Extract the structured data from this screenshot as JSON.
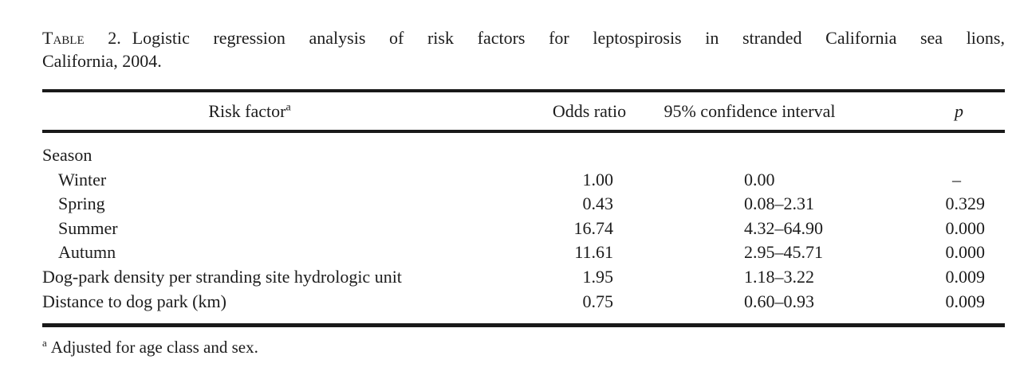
{
  "caption": {
    "label": "Table 2.",
    "line1": "Logistic regression analysis of risk factors for leptospirosis in stranded California sea lions,",
    "line2": "California, 2004."
  },
  "table": {
    "columns": [
      {
        "label": "Risk factor",
        "superscript": "a"
      },
      {
        "label": "Odds ratio"
      },
      {
        "label": "95% confidence interval"
      },
      {
        "label": "p"
      }
    ],
    "rows": [
      {
        "factor": "Season",
        "indent": false,
        "odds_ratio": "",
        "ci": "",
        "p": ""
      },
      {
        "factor": "Winter",
        "indent": true,
        "odds_ratio": "1.00",
        "ci": "0.00",
        "p": "–"
      },
      {
        "factor": "Spring",
        "indent": true,
        "odds_ratio": "0.43",
        "ci": "0.08–2.31",
        "p": "0.329"
      },
      {
        "factor": "Summer",
        "indent": true,
        "odds_ratio": "16.74",
        "ci": "4.32–64.90",
        "p": "0.000"
      },
      {
        "factor": "Autumn",
        "indent": true,
        "odds_ratio": "11.61",
        "ci": "2.95–45.71",
        "p": "0.000"
      },
      {
        "factor": "Dog-park density per stranding site hydrologic unit",
        "indent": false,
        "odds_ratio": "1.95",
        "ci": "1.18–3.22",
        "p": "0.009"
      },
      {
        "factor": "Distance to dog park (km)",
        "indent": false,
        "odds_ratio": "0.75",
        "ci": "0.60–0.93",
        "p": "0.009"
      }
    ],
    "footnote": {
      "superscript": "a",
      "text": "Adjusted for age class and sex."
    }
  },
  "colors": {
    "text": "#1c1c1c",
    "rule": "#191919",
    "background": "#ffffff"
  }
}
